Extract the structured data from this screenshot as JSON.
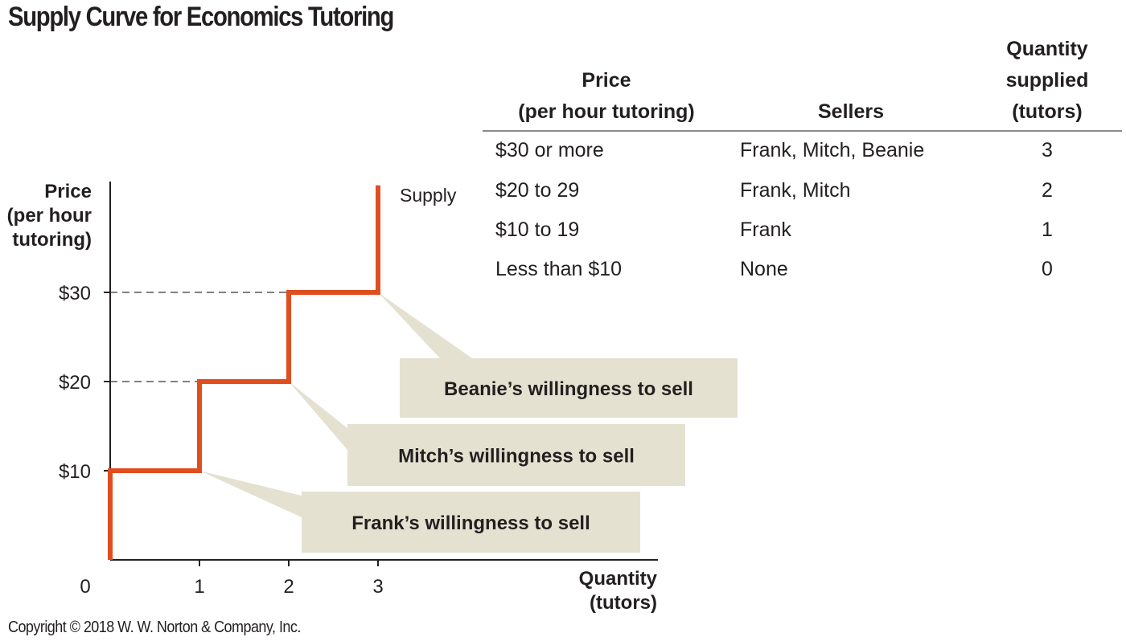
{
  "title": "Supply Curve for Economics Tutoring",
  "copyright": "Copyright © 2018 W. W. Norton & Company, Inc.",
  "table": {
    "headers": {
      "price": [
        "Price",
        "(per hour tutoring)"
      ],
      "sellers": "Sellers",
      "quantity": [
        "Quantity",
        "supplied",
        "(tutors)"
      ]
    },
    "rows": [
      {
        "price": "$30 or more",
        "sellers": "Frank, Mitch, Beanie",
        "quantity": "3"
      },
      {
        "price": "$20 to 29",
        "sellers": "Frank, Mitch",
        "quantity": "2"
      },
      {
        "price": "$10 to 19",
        "sellers": "Frank",
        "quantity": "1"
      },
      {
        "price": "Less than $10",
        "sellers": "None",
        "quantity": "0"
      }
    ]
  },
  "chart_data": {
    "type": "line",
    "step": true,
    "series": [
      {
        "name": "Supply",
        "color": "#e04e1f",
        "points": [
          [
            0,
            0
          ],
          [
            0,
            10
          ],
          [
            1,
            10
          ],
          [
            1,
            20
          ],
          [
            2,
            20
          ],
          [
            2,
            30
          ],
          [
            3,
            30
          ],
          [
            3,
            42
          ]
        ]
      }
    ],
    "ylabel": [
      "Price",
      "(per hour",
      "tutoring)"
    ],
    "xlabel": [
      "Quantity",
      "(tutors)"
    ],
    "xticks": [
      "0",
      "1",
      "2",
      "3"
    ],
    "yticks": [
      "$10",
      "$20",
      "$30"
    ],
    "yvals": [
      10,
      20,
      30
    ],
    "xlim": [
      0,
      6.2
    ],
    "ylim": [
      0,
      42
    ],
    "reference_lines": [
      20,
      30
    ],
    "annotations": [
      {
        "text": "Beanie’s willingness to sell",
        "target": [
          3,
          30
        ]
      },
      {
        "text": "Mitch’s willingness to sell",
        "target": [
          2,
          20
        ]
      },
      {
        "text": "Frank’s willingness to sell",
        "target": [
          1,
          10
        ]
      }
    ],
    "grid": false
  }
}
